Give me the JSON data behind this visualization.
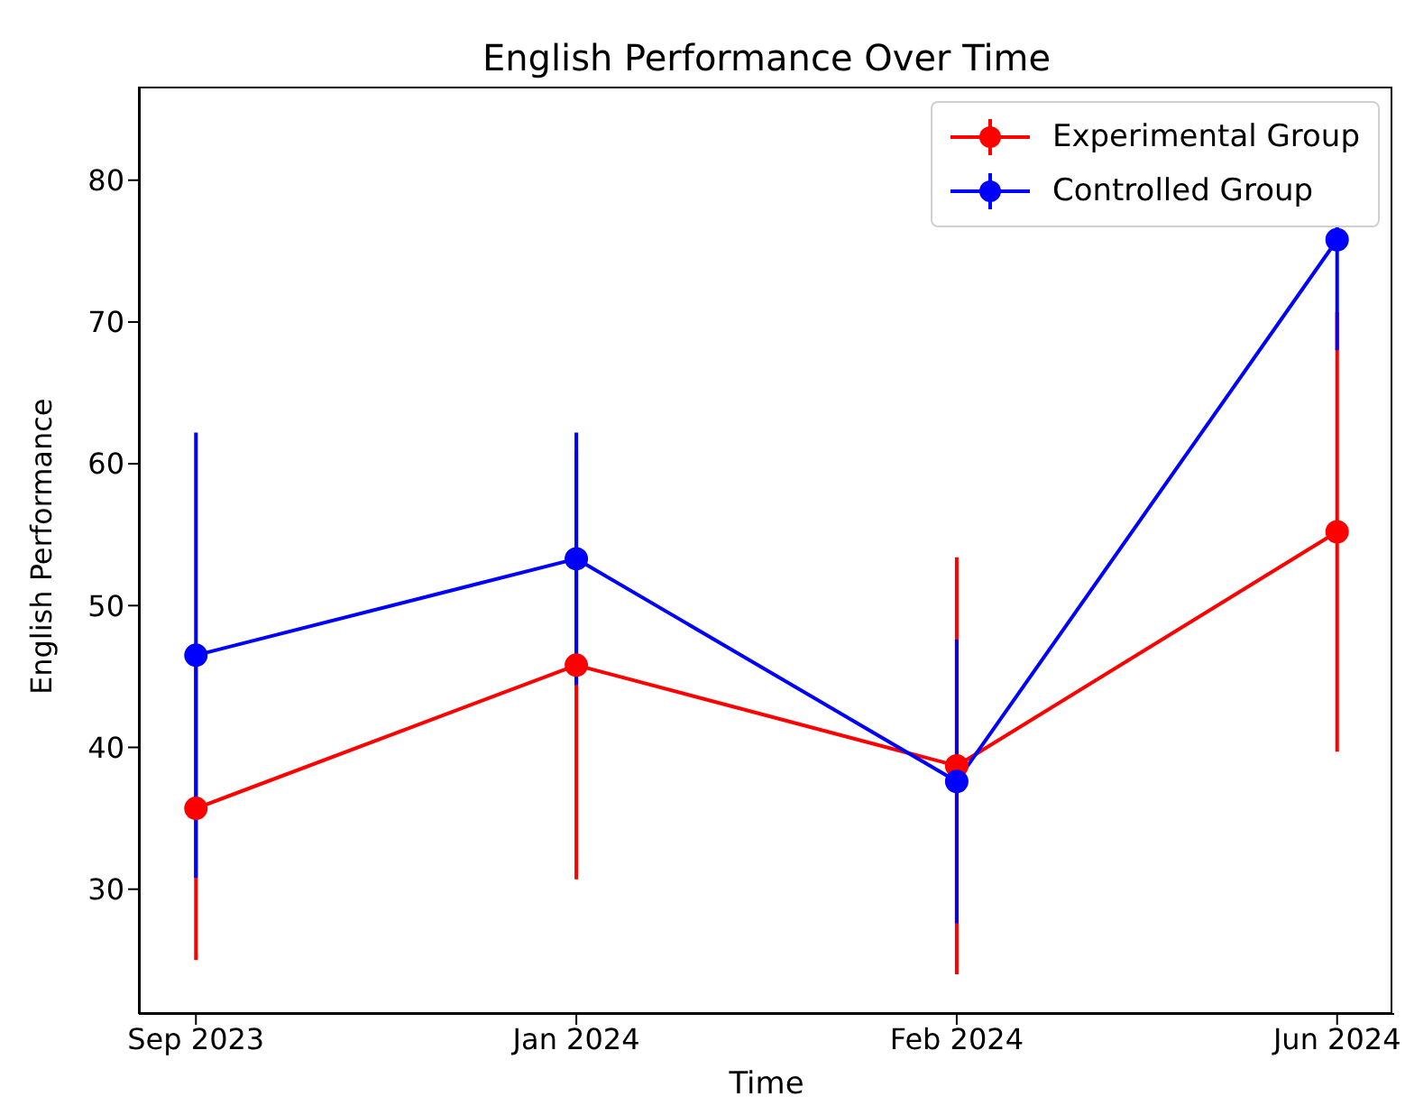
{
  "chart_data": {
    "type": "line",
    "title": "English Performance Over Time",
    "xlabel": "Time",
    "ylabel": "English Performance",
    "categories": [
      "Sep 2023",
      "Jan 2024",
      "Feb 2024",
      "Jun 2024"
    ],
    "series": [
      {
        "name": "Experimental Group",
        "color": "#ff0000",
        "values": [
          35.7,
          45.8,
          38.7,
          55.2
        ],
        "errors": [
          10.7,
          15.1,
          14.7,
          15.5
        ]
      },
      {
        "name": "Controlled Group",
        "color": "#0000ff",
        "values": [
          46.5,
          53.3,
          37.6,
          75.8
        ],
        "errors": [
          15.7,
          8.9,
          10,
          7.8
        ]
      }
    ],
    "ylim": [
      21.2,
      86.6
    ],
    "yticks": [
      30,
      40,
      50,
      60,
      70,
      80
    ],
    "grid": false,
    "legend": "top right",
    "marker": "circle",
    "line_style": "solid"
  }
}
